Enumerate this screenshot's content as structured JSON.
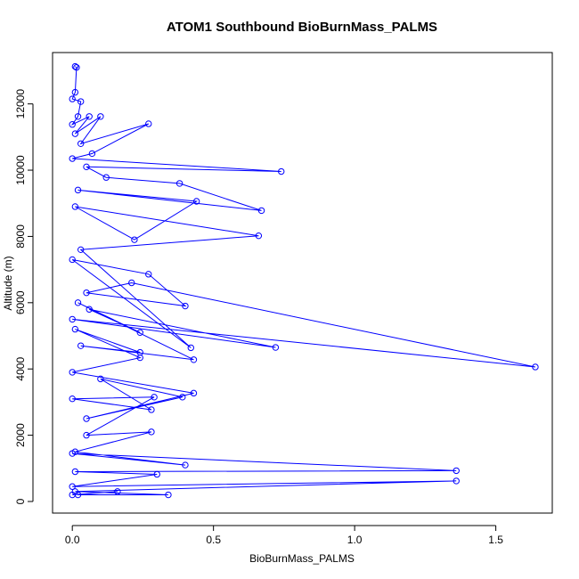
{
  "chart_data": {
    "type": "line",
    "title": "ATOM1 Southbound BioBurnMass_PALMS",
    "xlabel": "BioBurnMass_PALMS",
    "ylabel": "Altitude (m)",
    "xlim": [
      -0.07,
      1.7
    ],
    "ylim": [
      -350,
      13550
    ],
    "x_ticks": [
      0,
      0.5,
      1,
      1.5
    ],
    "x_tick_labels": [
      "0.0",
      "0.5",
      "1.0",
      "1.5"
    ],
    "y_ticks": [
      0,
      2000,
      4000,
      6000,
      8000,
      10000,
      12000
    ],
    "y_tick_labels": [
      "0",
      "2000",
      "4000",
      "6000",
      "8000",
      "10000",
      "12000"
    ],
    "grid": false,
    "legend": "none",
    "series_color": "#0000ff",
    "marker": "open-circle",
    "series": [
      {
        "points": [
          {
            "x": 0.01,
            "y": 13130
          },
          {
            "x": 0.015,
            "y": 13100
          },
          {
            "x": 0.01,
            "y": 12350
          },
          {
            "x": 0.0,
            "y": 12150
          },
          {
            "x": 0.03,
            "y": 12070
          },
          {
            "x": 0.02,
            "y": 11620
          },
          {
            "x": 0.0,
            "y": 11380
          },
          {
            "x": 0.06,
            "y": 11620
          },
          {
            "x": 0.01,
            "y": 11100
          },
          {
            "x": 0.1,
            "y": 11620
          },
          {
            "x": 0.03,
            "y": 10800
          },
          {
            "x": 0.27,
            "y": 11400
          },
          {
            "x": 0.07,
            "y": 10500
          },
          {
            "x": 0.0,
            "y": 10350
          },
          {
            "x": 0.74,
            "y": 9960
          },
          {
            "x": 0.05,
            "y": 10100
          },
          {
            "x": 0.12,
            "y": 9780
          },
          {
            "x": 0.38,
            "y": 9600
          },
          {
            "x": 0.67,
            "y": 8780
          },
          {
            "x": 0.02,
            "y": 9400
          },
          {
            "x": 0.44,
            "y": 9060
          },
          {
            "x": 0.22,
            "y": 7900
          },
          {
            "x": 0.01,
            "y": 8900
          },
          {
            "x": 0.66,
            "y": 8020
          },
          {
            "x": 0.03,
            "y": 7600
          },
          {
            "x": 0.42,
            "y": 4640
          },
          {
            "x": 0.0,
            "y": 7300
          },
          {
            "x": 0.27,
            "y": 6860
          },
          {
            "x": 0.4,
            "y": 5900
          },
          {
            "x": 0.05,
            "y": 6300
          },
          {
            "x": 0.21,
            "y": 6600
          },
          {
            "x": 1.64,
            "y": 4060
          },
          {
            "x": 0.0,
            "y": 5500
          },
          {
            "x": 0.72,
            "y": 4650
          },
          {
            "x": 0.06,
            "y": 5800
          },
          {
            "x": 0.24,
            "y": 5100
          },
          {
            "x": 0.02,
            "y": 6000
          },
          {
            "x": 0.43,
            "y": 4280
          },
          {
            "x": 0.03,
            "y": 4700
          },
          {
            "x": 0.24,
            "y": 4500
          },
          {
            "x": 0.01,
            "y": 5200
          },
          {
            "x": 0.24,
            "y": 4340
          },
          {
            "x": 0.0,
            "y": 3900
          },
          {
            "x": 0.43,
            "y": 3270
          },
          {
            "x": 0.05,
            "y": 2500
          },
          {
            "x": 0.39,
            "y": 3150
          },
          {
            "x": 0.1,
            "y": 3700
          },
          {
            "x": 0.28,
            "y": 2770
          },
          {
            "x": 0.0,
            "y": 3100
          },
          {
            "x": 0.29,
            "y": 3150
          },
          {
            "x": 0.05,
            "y": 2000
          },
          {
            "x": 0.28,
            "y": 2100
          },
          {
            "x": 0.01,
            "y": 1500
          },
          {
            "x": 0.4,
            "y": 1100
          },
          {
            "x": 0.0,
            "y": 1450
          },
          {
            "x": 1.36,
            "y": 930
          },
          {
            "x": 0.01,
            "y": 900
          },
          {
            "x": 0.3,
            "y": 820
          },
          {
            "x": 0.0,
            "y": 450
          },
          {
            "x": 1.36,
            "y": 620
          },
          {
            "x": 0.01,
            "y": 300
          },
          {
            "x": 0.34,
            "y": 200
          },
          {
            "x": 0.02,
            "y": 200
          },
          {
            "x": 0.16,
            "y": 300
          },
          {
            "x": 0.0,
            "y": 200
          }
        ]
      }
    ]
  }
}
